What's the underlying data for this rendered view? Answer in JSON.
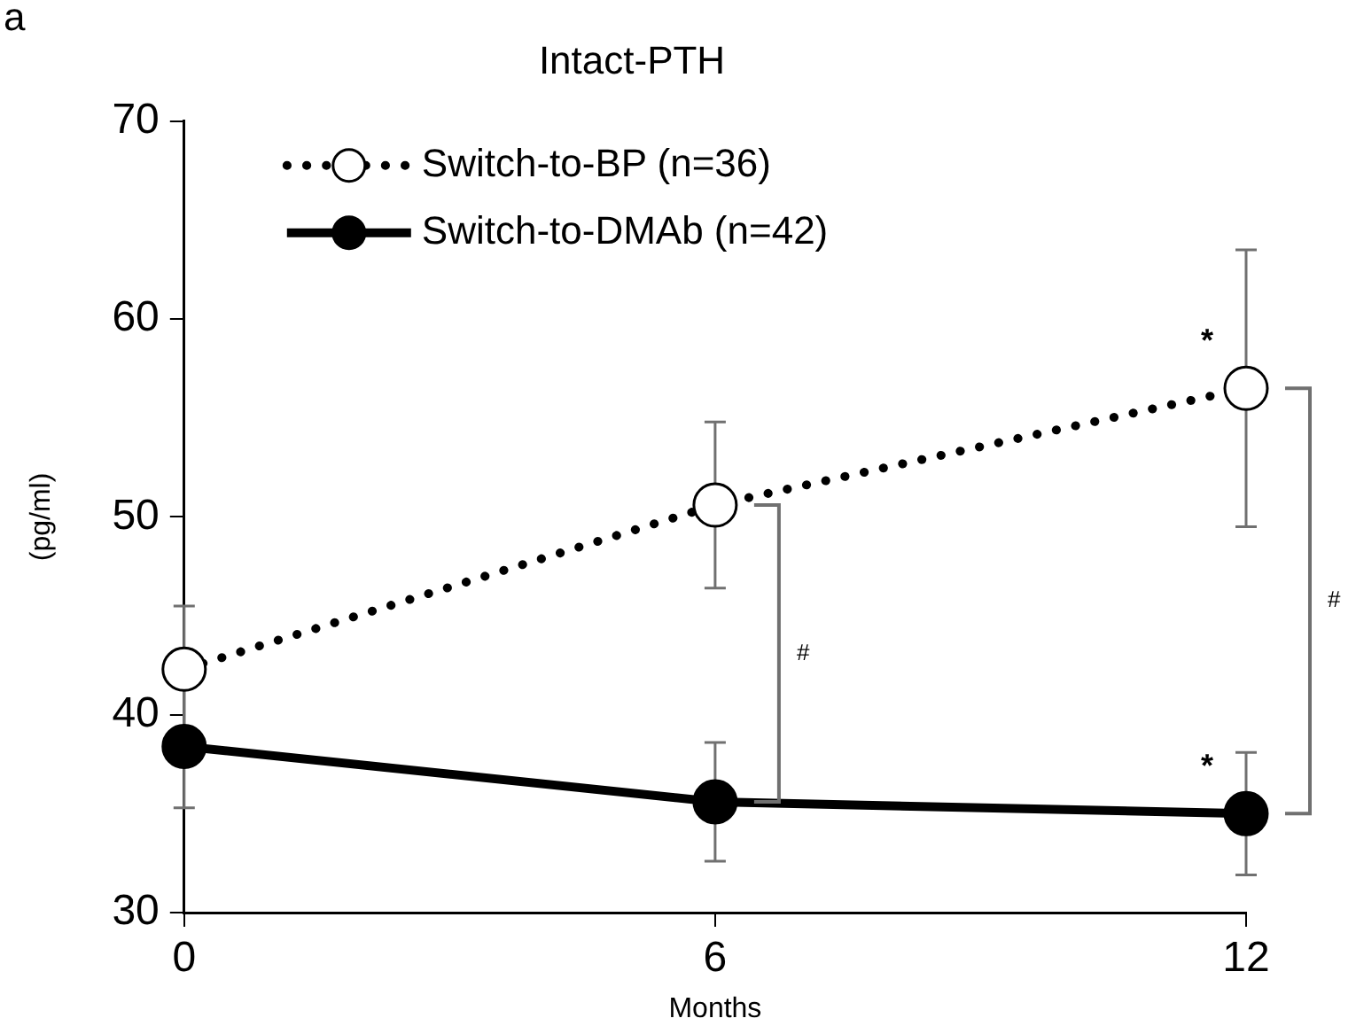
{
  "chart_data": {
    "type": "line",
    "title": "Intact-PTH",
    "xlabel": "Months",
    "ylabel": "(pg/ml)",
    "x": [
      0,
      6,
      12
    ],
    "xlim": [
      0,
      12
    ],
    "xticks": [
      0,
      6,
      12
    ],
    "ylim": [
      30,
      70
    ],
    "yticks": [
      30,
      40,
      50,
      60,
      70
    ],
    "series": [
      {
        "name": "Switch-to-BP (n=36)",
        "color": "#000000",
        "values": [
          42.3,
          50.6,
          56.5
        ],
        "errors": [
          3.2,
          4.2,
          7
        ],
        "line_style": "dotted",
        "marker": "circle"
      },
      {
        "name": "Switch-to-DMAb (n=42)",
        "color": "#000000",
        "values": [
          38.4,
          35.6,
          35.0
        ],
        "errors": [
          3.1,
          3,
          3.1
        ],
        "line_style": "solid",
        "marker": "circle"
      }
    ],
    "annotations": [
      "a",
      {
        "text": "*",
        "x": 12,
        "y": 56.5
      },
      {
        "text": "*",
        "x": 12,
        "y": 35.0
      },
      "#",
      "#"
    ],
    "grid": false,
    "legend": "top left"
  }
}
